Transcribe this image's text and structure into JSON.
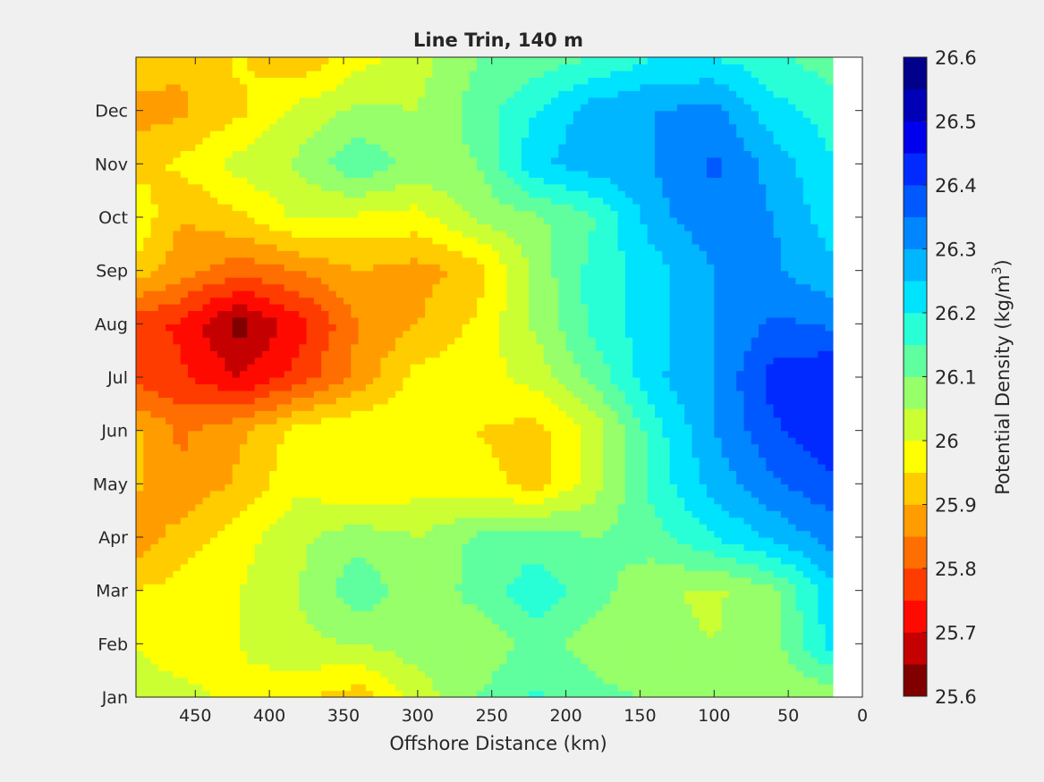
{
  "chart_data": {
    "type": "heatmap",
    "subtype": "filled-contour",
    "title": "Line Trin, 140 m",
    "xlabel": "Offshore Distance (km)",
    "xlim": [
      0,
      490
    ],
    "x_reversed": true,
    "x_ticks": [
      450,
      400,
      350,
      300,
      250,
      200,
      150,
      100,
      50,
      0
    ],
    "x_tick_labels": [
      "450",
      "400",
      "350",
      "300",
      "250",
      "200",
      "150",
      "100",
      "50",
      "0"
    ],
    "y_categories": [
      "Jan",
      "Feb",
      "Mar",
      "Apr",
      "May",
      "Jun",
      "Jul",
      "Aug",
      "Sep",
      "Oct",
      "Nov",
      "Dec"
    ],
    "data_x_extent": [
      20,
      490
    ],
    "no_data_region": "0-20 km (blank)",
    "colorbar": {
      "label": "Potential Density (kg/m",
      "label_superscript": "3",
      "label_suffix": ")",
      "range": [
        25.6,
        26.6
      ],
      "tick_values": [
        25.6,
        25.7,
        25.8,
        25.9,
        26.0,
        26.1,
        26.2,
        26.3,
        26.4,
        26.5,
        26.6
      ],
      "tick_labels": [
        "25.6",
        "25.7",
        "25.8",
        "25.9",
        "26",
        "26.1",
        "26.2",
        "26.3",
        "26.4",
        "26.5",
        "26.6"
      ],
      "levels": [
        25.6,
        25.65,
        25.7,
        25.75,
        25.8,
        25.85,
        25.9,
        25.95,
        26.0,
        26.05,
        26.1,
        26.15,
        26.2,
        26.25,
        26.3,
        26.35,
        26.4,
        26.45,
        26.5,
        26.55,
        26.6
      ],
      "colors": [
        "#800000",
        "#c40000",
        "#ff0a00",
        "#ff3c00",
        "#ff6e00",
        "#ff9d00",
        "#ffcc00",
        "#ffff00",
        "#ccff33",
        "#96ff69",
        "#5fffa0",
        "#29ffd6",
        "#00e3ff",
        "#00b6ff",
        "#0086ff",
        "#0058ff",
        "#002aff",
        "#0000ec",
        "#0000b7",
        "#00008b"
      ]
    },
    "x_grid": [
      20,
      60,
      100,
      140,
      180,
      220,
      260,
      300,
      340,
      380,
      420,
      460,
      490
    ],
    "month_grid": [
      0,
      1,
      2,
      3,
      4,
      5,
      6,
      7,
      8,
      9,
      10,
      11,
      12
    ],
    "z": [
      [
        26.06,
        26.07,
        26.07,
        26.09,
        26.12,
        26.16,
        26.1,
        26.02,
        25.92,
        25.96,
        25.99,
        26.01,
        26.02
      ],
      [
        26.22,
        26.08,
        26.05,
        26.06,
        26.07,
        26.12,
        26.06,
        26.08,
        26.05,
        26.04,
        26.0,
        25.98,
        26.0
      ],
      [
        26.24,
        26.09,
        26.04,
        26.06,
        26.12,
        26.18,
        26.12,
        26.06,
        26.14,
        26.05,
        26.0,
        25.97,
        25.95
      ],
      [
        26.32,
        26.26,
        26.2,
        26.13,
        26.1,
        26.13,
        26.11,
        26.05,
        26.08,
        26.04,
        25.98,
        25.92,
        25.87
      ],
      [
        26.39,
        26.34,
        26.27,
        26.17,
        26.03,
        25.93,
        25.97,
        25.98,
        25.95,
        25.99,
        25.91,
        25.86,
        25.91
      ],
      [
        26.44,
        26.39,
        26.3,
        26.18,
        26.02,
        25.93,
        25.95,
        25.98,
        26.0,
        25.97,
        25.89,
        25.84,
        25.91
      ],
      [
        26.45,
        26.42,
        26.3,
        26.24,
        26.12,
        26.02,
        25.98,
        25.97,
        25.87,
        25.77,
        25.7,
        25.76,
        25.78
      ],
      [
        26.34,
        26.36,
        26.3,
        26.23,
        26.17,
        26.06,
        25.96,
        25.9,
        25.85,
        25.73,
        25.63,
        25.74,
        25.77
      ],
      [
        26.26,
        26.31,
        26.3,
        26.23,
        26.17,
        26.07,
        25.92,
        25.88,
        25.9,
        25.85,
        25.82,
        25.87,
        25.93
      ],
      [
        26.22,
        26.3,
        26.34,
        26.28,
        26.15,
        26.09,
        26.06,
        25.98,
        25.99,
        26.01,
        25.94,
        25.9,
        25.99
      ],
      [
        26.2,
        26.28,
        26.36,
        26.3,
        26.28,
        26.24,
        26.1,
        26.08,
        26.14,
        26.06,
        26.02,
        25.96,
        25.93
      ],
      [
        26.18,
        26.22,
        26.32,
        26.3,
        26.28,
        26.2,
        26.12,
        26.05,
        26.06,
        26.02,
        25.94,
        25.89,
        25.88
      ],
      [
        26.12,
        26.16,
        26.2,
        26.2,
        26.15,
        26.12,
        26.1,
        26.03,
        25.98,
        25.9,
        25.96,
        25.91,
        25.93
      ]
    ]
  }
}
